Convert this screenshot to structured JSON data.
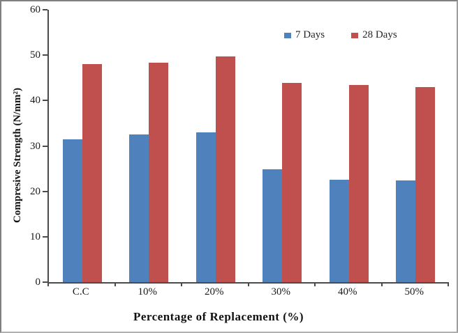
{
  "window": {
    "background": "#ffffff",
    "frame_border_color": "#7f7f7f"
  },
  "axis": {
    "line_color": "#4a4a4a",
    "text_color": "#1a1a1a"
  },
  "chart_data": {
    "type": "bar",
    "title": "",
    "xlabel": "Percentage of Replacement (%)",
    "ylabel": "Compresive Strength (N/mm²)",
    "categories": [
      "C.C",
      "10%",
      "20%",
      "30%",
      "40%",
      "50%"
    ],
    "series": [
      {
        "name": "7 Days",
        "color": "#4f81bd",
        "values": [
          31.4,
          32.5,
          33.0,
          24.8,
          22.6,
          22.4
        ]
      },
      {
        "name": "28 Days",
        "color": "#c0504d",
        "values": [
          48.0,
          48.3,
          49.7,
          43.9,
          43.5,
          43.0
        ]
      }
    ],
    "ylim": [
      0,
      60
    ],
    "yticks": [
      0,
      10,
      20,
      30,
      40,
      50,
      60
    ],
    "grid": false,
    "legend_position": "top-right-inside"
  }
}
